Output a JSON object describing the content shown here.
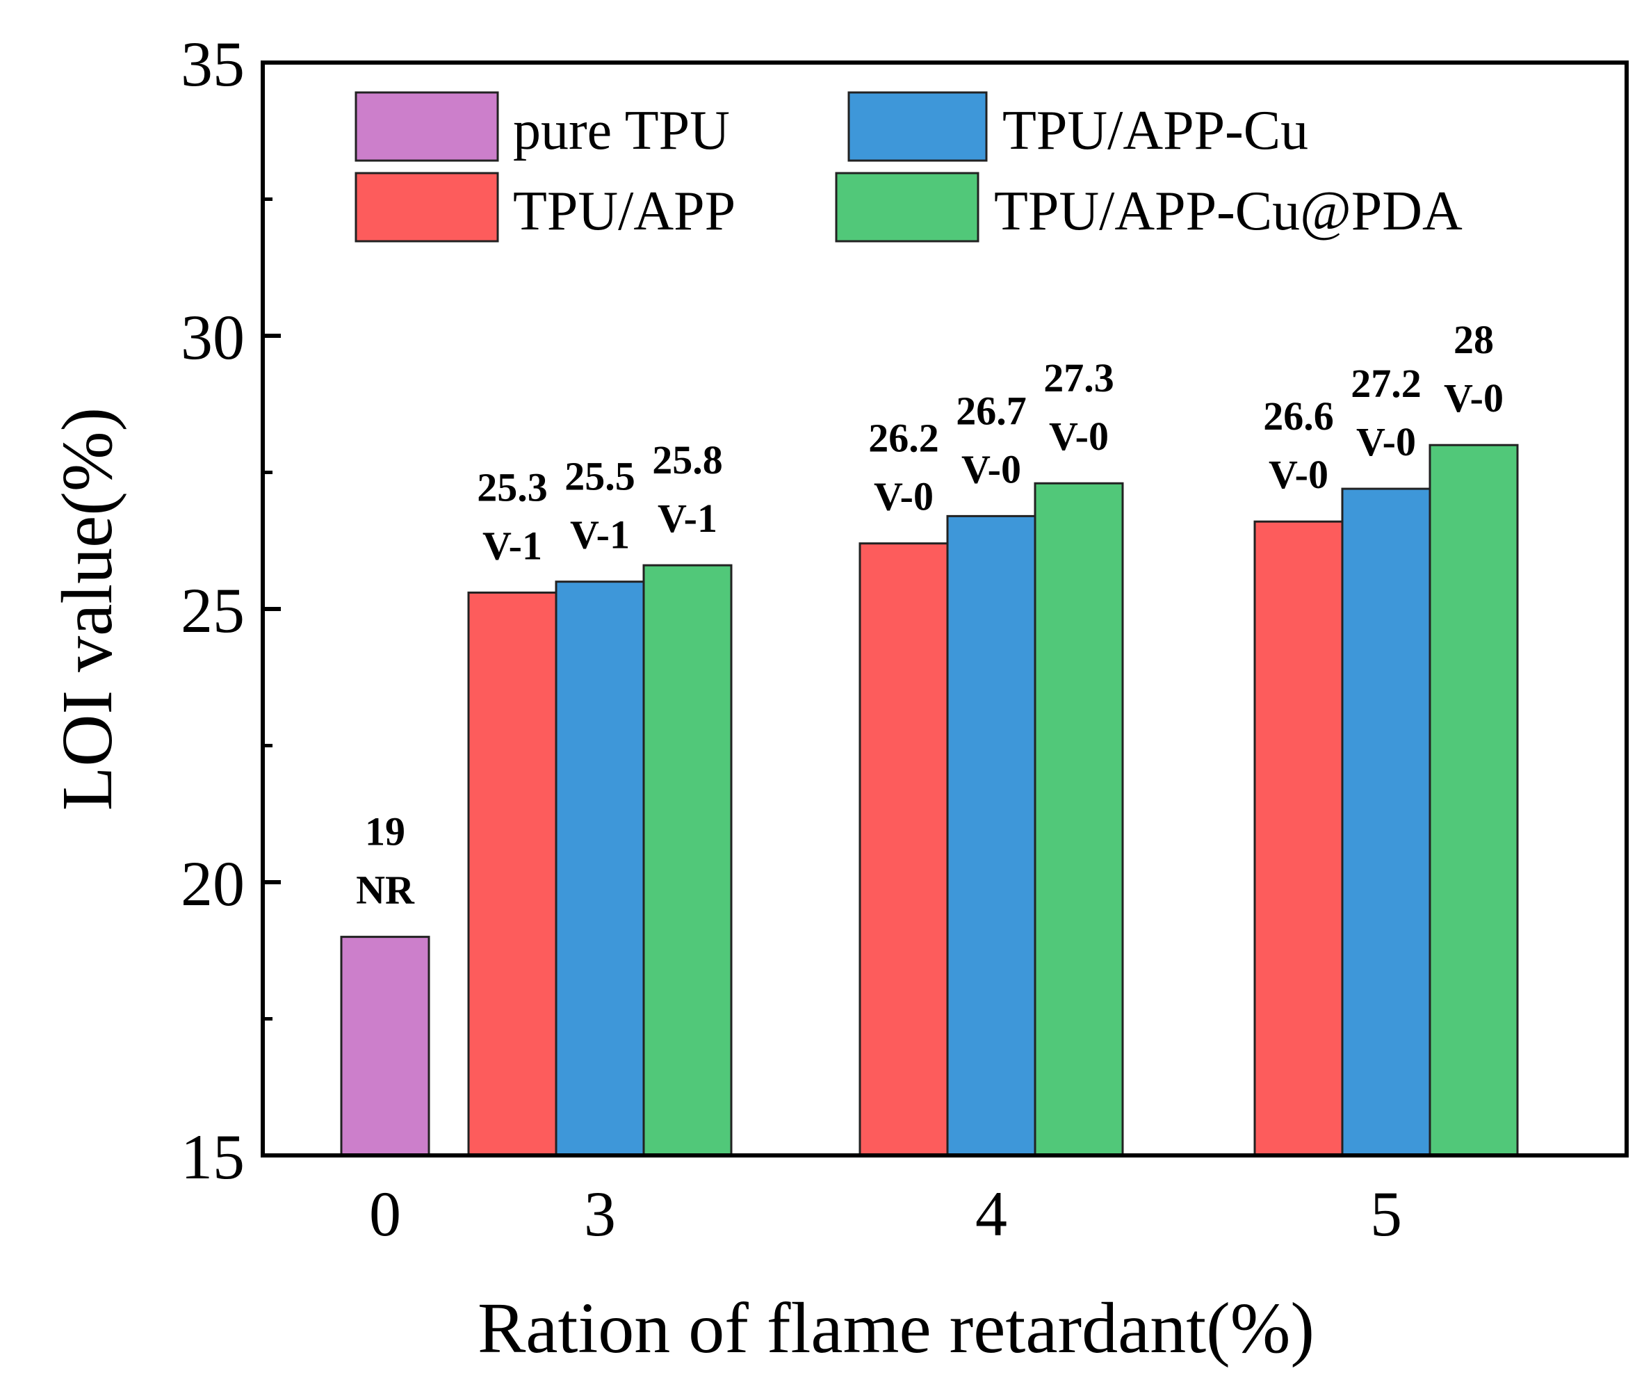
{
  "chart_data": {
    "type": "bar",
    "title": "",
    "xlabel": "Ration of flame retardant(%)",
    "ylabel": "LOI value(%)",
    "ylim": [
      15,
      35
    ],
    "yticks": [
      15,
      20,
      25,
      30,
      35
    ],
    "categories": [
      "0",
      "3",
      "4",
      "5"
    ],
    "legend_position": "top",
    "series": [
      {
        "name": "pure TPU",
        "color": "#cc7fcb",
        "values": [
          19,
          null,
          null,
          null
        ],
        "ratings": [
          "NR",
          null,
          null,
          null
        ]
      },
      {
        "name": "TPU/APP",
        "color": "#fd5c5c",
        "values": [
          null,
          25.3,
          26.2,
          26.6
        ],
        "ratings": [
          null,
          "V-1",
          "V-0",
          "V-0"
        ]
      },
      {
        "name": "TPU/APP-Cu",
        "color": "#3e97d9",
        "values": [
          null,
          25.5,
          26.7,
          27.2
        ],
        "ratings": [
          null,
          "V-1",
          "V-0",
          "V-0"
        ]
      },
      {
        "name": "TPU/APP-Cu@PDA",
        "color": "#51c879",
        "values": [
          null,
          25.8,
          27.3,
          28
        ],
        "ratings": [
          null,
          "V-1",
          "V-0",
          "V-0"
        ]
      }
    ]
  }
}
